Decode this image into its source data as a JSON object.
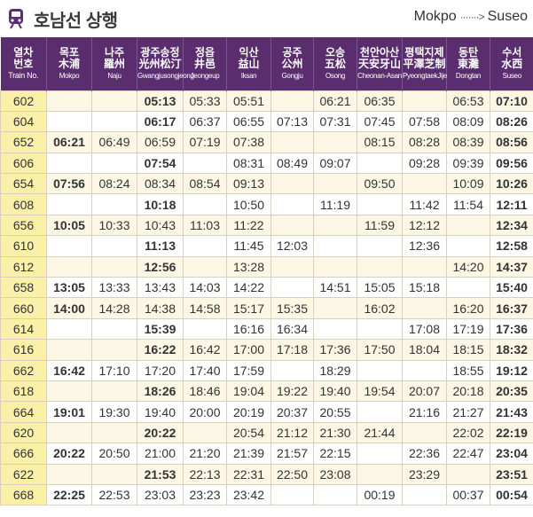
{
  "header": {
    "title": "호남선 상행",
    "route_from": "Mokpo",
    "route_arrow": "·······>",
    "route_to": "Suseo",
    "icon": "train-icon"
  },
  "columns": [
    {
      "ko": "열차",
      "cn": "번호",
      "en": "Train No."
    },
    {
      "ko": "목포",
      "cn": "木浦",
      "en": "Mokpo"
    },
    {
      "ko": "나주",
      "cn": "羅州",
      "en": "Naju"
    },
    {
      "ko": "광주송정",
      "cn": "光州松汀",
      "en": "Gwangjusongjeong"
    },
    {
      "ko": "정읍",
      "cn": "井邑",
      "en": "Jeongeup"
    },
    {
      "ko": "익산",
      "cn": "益山",
      "en": "Iksan"
    },
    {
      "ko": "공주",
      "cn": "公州",
      "en": "Gongju"
    },
    {
      "ko": "오송",
      "cn": "五松",
      "en": "Osong"
    },
    {
      "ko": "천안아산",
      "cn": "天安牙山",
      "en": "Cheonan-Asan"
    },
    {
      "ko": "평택지제",
      "cn": "平澤芝制",
      "en": "PyeongtaekJije"
    },
    {
      "ko": "동탄",
      "cn": "東灘",
      "en": "Dongtan"
    },
    {
      "ko": "수서",
      "cn": "水西",
      "en": "Suseo"
    }
  ],
  "rows": [
    {
      "no": "602",
      "t": [
        "",
        "",
        "05:13",
        "05:33",
        "05:51",
        "",
        "06:21",
        "06:35",
        "",
        "06:53",
        "07:10"
      ],
      "origin": 2
    },
    {
      "no": "604",
      "t": [
        "",
        "",
        "06:17",
        "06:37",
        "06:55",
        "07:13",
        "07:31",
        "07:45",
        "07:58",
        "08:09",
        "08:26"
      ],
      "origin": 2
    },
    {
      "no": "652",
      "t": [
        "06:21",
        "06:49",
        "06:59",
        "07:19",
        "07:38",
        "",
        "",
        "08:15",
        "08:28",
        "08:39",
        "08:56"
      ],
      "origin": 0
    },
    {
      "no": "606",
      "t": [
        "",
        "",
        "07:54",
        "",
        "08:31",
        "08:49",
        "09:07",
        "",
        "09:28",
        "09:39",
        "09:56"
      ],
      "origin": 2
    },
    {
      "no": "654",
      "t": [
        "07:56",
        "08:24",
        "08:34",
        "08:54",
        "09:13",
        "",
        "",
        "09:50",
        "",
        "10:09",
        "10:26"
      ],
      "origin": 0
    },
    {
      "no": "608",
      "t": [
        "",
        "",
        "10:18",
        "",
        "10:50",
        "",
        "11:19",
        "",
        "11:42",
        "11:54",
        "12:11"
      ],
      "origin": 2
    },
    {
      "no": "656",
      "t": [
        "10:05",
        "10:33",
        "10:43",
        "11:03",
        "11:22",
        "",
        "",
        "11:59",
        "12:12",
        "",
        "12:34"
      ],
      "origin": 0
    },
    {
      "no": "610",
      "t": [
        "",
        "",
        "11:13",
        "",
        "11:45",
        "12:03",
        "",
        "",
        "12:36",
        "",
        "12:58"
      ],
      "origin": 2
    },
    {
      "no": "612",
      "t": [
        "",
        "",
        "12:56",
        "",
        "13:28",
        "",
        "",
        "",
        "",
        "14:20",
        "14:37"
      ],
      "origin": 2
    },
    {
      "no": "658",
      "t": [
        "13:05",
        "13:33",
        "13:43",
        "14:03",
        "14:22",
        "",
        "14:51",
        "15:05",
        "15:18",
        "",
        "15:40"
      ],
      "origin": 0
    },
    {
      "no": "660",
      "t": [
        "14:00",
        "14:28",
        "14:38",
        "14:58",
        "15:17",
        "15:35",
        "",
        "16:02",
        "",
        "16:20",
        "16:37"
      ],
      "origin": 0
    },
    {
      "no": "614",
      "t": [
        "",
        "",
        "15:39",
        "",
        "16:16",
        "16:34",
        "",
        "",
        "17:08",
        "17:19",
        "17:36"
      ],
      "origin": 2
    },
    {
      "no": "616",
      "t": [
        "",
        "",
        "16:22",
        "16:42",
        "17:00",
        "17:18",
        "17:36",
        "17:50",
        "18:04",
        "18:15",
        "18:32"
      ],
      "origin": 2
    },
    {
      "no": "662",
      "t": [
        "16:42",
        "17:10",
        "17:20",
        "17:40",
        "17:59",
        "",
        "18:29",
        "",
        "",
        "18:55",
        "19:12"
      ],
      "origin": 0
    },
    {
      "no": "618",
      "t": [
        "",
        "",
        "18:26",
        "18:46",
        "19:04",
        "19:22",
        "19:40",
        "19:54",
        "20:07",
        "20:18",
        "20:35"
      ],
      "origin": 2
    },
    {
      "no": "664",
      "t": [
        "19:01",
        "19:30",
        "19:40",
        "20:00",
        "20:19",
        "20:37",
        "20:55",
        "",
        "21:16",
        "21:27",
        "21:43"
      ],
      "origin": 0
    },
    {
      "no": "620",
      "t": [
        "",
        "",
        "20:22",
        "",
        "20:54",
        "21:12",
        "21:30",
        "21:44",
        "",
        "22:02",
        "22:19"
      ],
      "origin": 2
    },
    {
      "no": "666",
      "t": [
        "20:22",
        "20:50",
        "21:00",
        "21:20",
        "21:39",
        "21:57",
        "22:15",
        "",
        "22:36",
        "22:47",
        "23:04"
      ],
      "origin": 0
    },
    {
      "no": "622",
      "t": [
        "",
        "",
        "21:53",
        "22:13",
        "22:31",
        "22:50",
        "23:08",
        "",
        "23:29",
        "",
        "23:51"
      ],
      "origin": 2
    },
    {
      "no": "668",
      "t": [
        "22:25",
        "22:53",
        "23:03",
        "23:23",
        "23:42",
        "",
        "",
        "00:19",
        "",
        "00:37",
        "00:54"
      ],
      "origin": 0
    }
  ]
}
